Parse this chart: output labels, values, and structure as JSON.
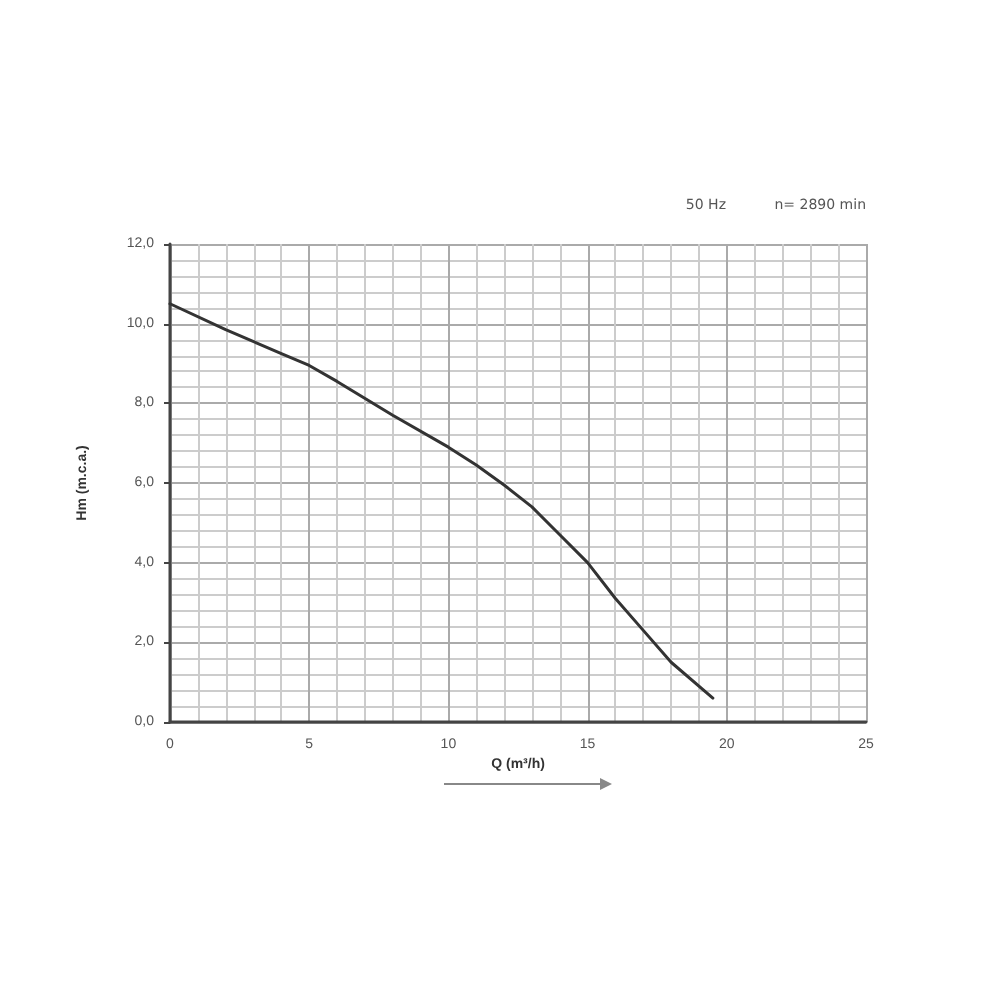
{
  "chart_data": {
    "type": "line",
    "xlabel": "Q (m³/h)",
    "ylabel": "Hm (m.c.a.)",
    "annotations": [
      "50 Hz",
      "n= 2890 min"
    ],
    "x": [
      0,
      2,
      4,
      5,
      6,
      8,
      10,
      11,
      12,
      13,
      14,
      15,
      16,
      17,
      18,
      19.5
    ],
    "series": [
      {
        "color": "#333333",
        "values": [
          10.5,
          9.85,
          9.25,
          8.95,
          8.55,
          7.7,
          6.9,
          6.45,
          5.95,
          5.4,
          4.7,
          4.0,
          3.1,
          2.3,
          1.5,
          0.6
        ]
      }
    ],
    "xlim": [
      0,
      25
    ],
    "xticks": [
      0,
      5,
      10,
      15,
      20,
      25
    ],
    "ylim": [
      0,
      12
    ],
    "yticks": [
      {
        "value": 0,
        "label": "0,0"
      },
      {
        "value": 2,
        "label": "2,0"
      },
      {
        "value": 4,
        "label": "4,0"
      },
      {
        "value": 6,
        "label": "6,0"
      },
      {
        "value": 8,
        "label": "8,0"
      },
      {
        "value": 10,
        "label": "10,0"
      },
      {
        "value": 12,
        "label": "12,0"
      }
    ],
    "grid": true,
    "marker": "none",
    "line_style": "solid"
  }
}
